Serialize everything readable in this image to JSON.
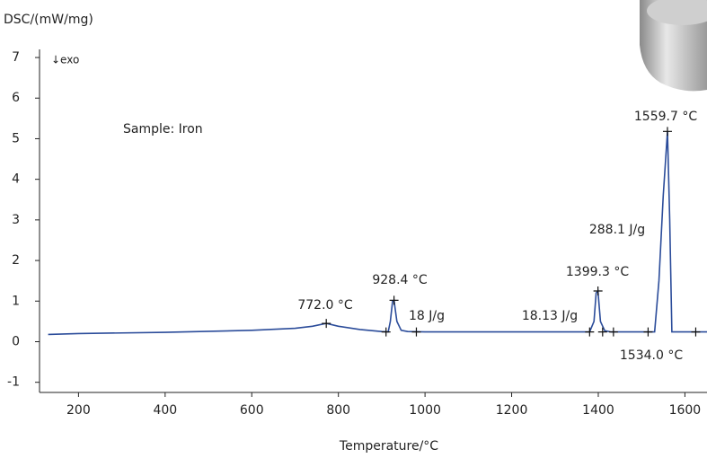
{
  "chart_data": {
    "type": "line",
    "y_label": "DSC/(mW/mg)",
    "x_label": "Temperature/°C",
    "exo_label": "↓exo",
    "sample_label": "Sample: Iron",
    "xlim": [
      110,
      1651
    ],
    "ylim": [
      -1.25,
      7.2
    ],
    "xticks": [
      200,
      400,
      600,
      800,
      1000,
      1200,
      1400,
      1600
    ],
    "yticks": [
      -1,
      0,
      1,
      2,
      3,
      4,
      5,
      6,
      7
    ],
    "series": [
      {
        "name": "Iron",
        "color": "#2b4c9a",
        "x": [
          130,
          200,
          400,
          600,
          700,
          740,
          772,
          800,
          850,
          900,
          915,
          920,
          925,
          928.4,
          935,
          945,
          960,
          1000,
          1200,
          1380,
          1390,
          1395,
          1399.3,
          1405,
          1415,
          1430,
          1530,
          1540,
          1550,
          1559.7,
          1565,
          1570,
          1651
        ],
        "values": [
          0.18,
          0.2,
          0.23,
          0.28,
          0.33,
          0.38,
          0.45,
          0.38,
          0.3,
          0.25,
          0.24,
          0.5,
          1.0,
          1.02,
          0.5,
          0.28,
          0.25,
          0.24,
          0.24,
          0.24,
          0.5,
          1.2,
          1.25,
          0.5,
          0.27,
          0.24,
          0.24,
          1.5,
          3.6,
          5.18,
          3.0,
          0.24,
          0.24
        ]
      }
    ],
    "markers": {
      "x": [
        772,
        910,
        928.4,
        980,
        1380,
        1399.3,
        1410,
        1435,
        1515,
        1559.7,
        1625
      ],
      "y": [
        0.45,
        0.24,
        1.02,
        0.24,
        0.24,
        1.25,
        0.24,
        0.24,
        0.24,
        5.18,
        0.24
      ]
    },
    "annotations": [
      "772.0 °C",
      "928.4 °C",
      "18 J/g",
      "18.13 J/g",
      "1399.3 °C",
      "288.1 J/g",
      "1559.7 °C",
      "1534.0 °C"
    ]
  }
}
